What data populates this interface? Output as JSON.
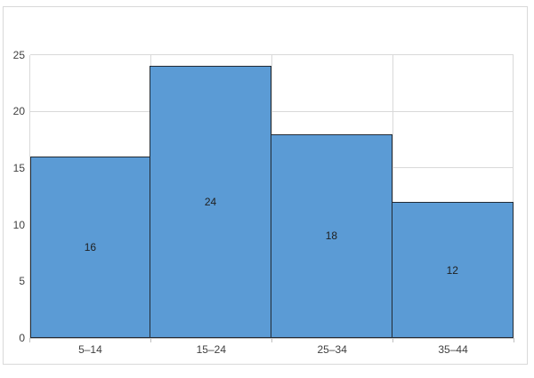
{
  "chart_data": {
    "type": "bar",
    "subtype": "histogram",
    "categories": [
      "5–14",
      "15–24",
      "25–34",
      "35–44"
    ],
    "values": [
      16,
      24,
      18,
      12
    ],
    "data_labels": [
      "16",
      "24",
      "18",
      "12"
    ],
    "y_ticks": [
      0,
      5,
      10,
      15,
      20,
      25
    ],
    "ylim": [
      0,
      25
    ],
    "gap_width": 0,
    "grid": true,
    "legend": false,
    "data_labels_position": "center",
    "colors": {
      "bar_fill": "#5b9bd5",
      "bar_border": "#222b35",
      "gridline": "#d9d9d9",
      "axis_line": "#bfbfbf",
      "axis_text": "#404040",
      "data_label_text": "#1f1f1f",
      "frame_border": "#d9d9d9",
      "background": "#ffffff"
    }
  }
}
